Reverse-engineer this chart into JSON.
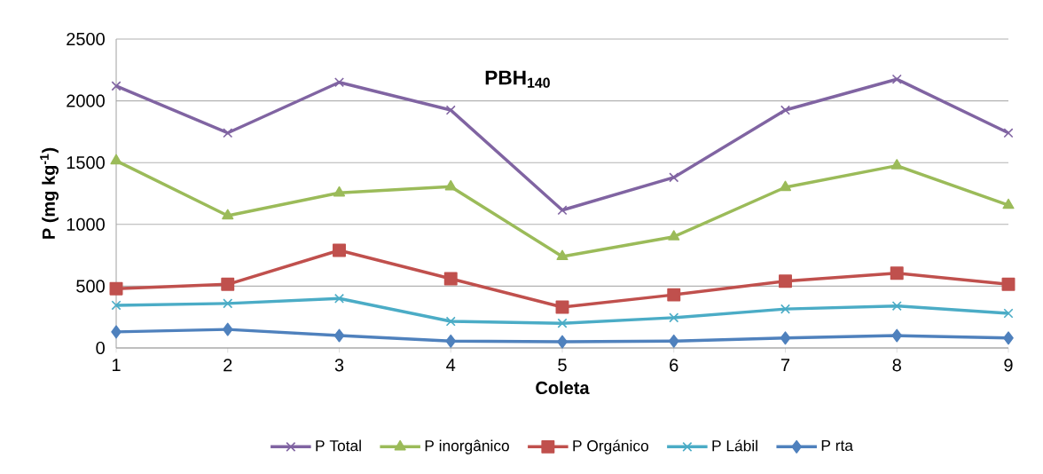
{
  "chart_data": {
    "type": "line",
    "title": "PBH$_{140}$",
    "xlabel": "Coleta",
    "ylabel": "P (mg kg$^{-1}$)",
    "x": [
      1,
      2,
      3,
      4,
      5,
      6,
      7,
      8,
      9
    ],
    "xlim": [
      1,
      9
    ],
    "xticks": [
      1,
      2,
      3,
      4,
      5,
      6,
      7,
      8,
      9
    ],
    "ylim": [
      0,
      2500
    ],
    "yticks": [
      0,
      500,
      1000,
      1500,
      2000,
      2500
    ],
    "grid": "y",
    "legend": "bottom",
    "line_style": "solid",
    "series": [
      {
        "name": "P Total",
        "color": "#8064a2",
        "marker": "cross",
        "values": [
          2120,
          1740,
          2150,
          1925,
          1115,
          1380,
          1925,
          2175,
          1740
        ]
      },
      {
        "name": "P inorgânico",
        "color": "#9bbb59",
        "marker": "triangle",
        "values": [
          1515,
          1070,
          1255,
          1305,
          740,
          900,
          1300,
          1475,
          1155
        ]
      },
      {
        "name": "P Orgánico",
        "color": "#c0504d",
        "marker": "square",
        "values": [
          480,
          515,
          790,
          560,
          330,
          430,
          540,
          605,
          515
        ]
      },
      {
        "name": "P Lábil",
        "color": "#4bacc6",
        "marker": "cross",
        "values": [
          345,
          360,
          400,
          215,
          200,
          245,
          315,
          340,
          280
        ]
      },
      {
        "name": "P rta",
        "color": "#4f81bd",
        "marker": "diamond",
        "values": [
          130,
          150,
          100,
          55,
          50,
          55,
          80,
          100,
          80
        ]
      }
    ]
  }
}
